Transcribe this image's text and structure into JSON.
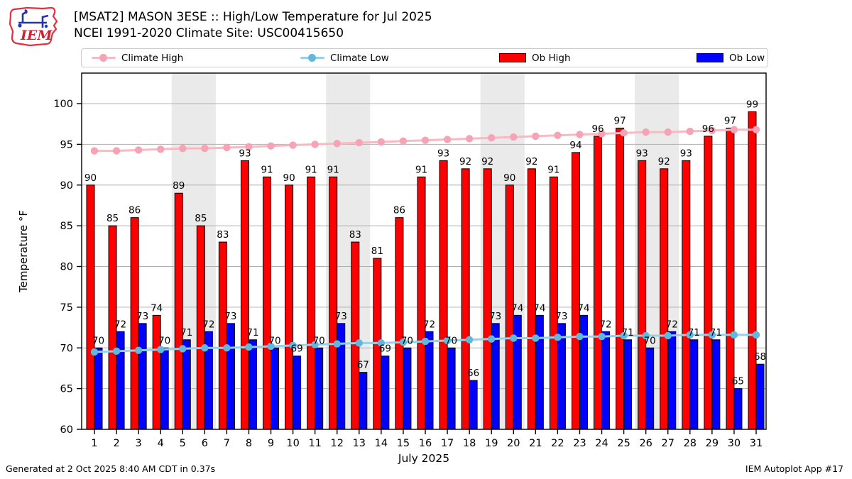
{
  "header": {
    "title_line1": "[MSAT2] MASON 3ESE :: High/Low Temperature for Jul 2025",
    "title_line2": "NCEI 1991-2020 Climate Site: USC00415650",
    "logo_text": "IEM"
  },
  "legend": {
    "items": [
      {
        "label": "Climate High",
        "type": "line",
        "color": "#f9b8c4",
        "marker_color": "#f5a3b5"
      },
      {
        "label": "Climate Low",
        "type": "line",
        "color": "#93d2ea",
        "marker_color": "#62b8dc"
      },
      {
        "label": "Ob High",
        "type": "patch",
        "color": "#ff0000"
      },
      {
        "label": "Ob Low",
        "type": "patch",
        "color": "#0000ff"
      }
    ]
  },
  "chart_data": {
    "type": "bar",
    "title": "[MSAT2] MASON 3ESE :: High/Low Temperature for Jul 2025",
    "subtitle": "NCEI 1991-2020 Climate Site: USC00415650",
    "xlabel": "July 2025",
    "ylabel": "Temperature °F",
    "ylim": [
      60,
      103.75
    ],
    "yticks": [
      60,
      65,
      70,
      75,
      80,
      85,
      90,
      95,
      100
    ],
    "grid": true,
    "legend_position": "top",
    "x": [
      1,
      2,
      3,
      4,
      5,
      6,
      7,
      8,
      9,
      10,
      11,
      12,
      13,
      14,
      15,
      16,
      17,
      18,
      19,
      20,
      21,
      22,
      23,
      24,
      25,
      26,
      27,
      28,
      29,
      30,
      31
    ],
    "weekend_bands": [
      [
        4.5,
        6.5
      ],
      [
        11.5,
        13.5
      ],
      [
        18.5,
        20.5
      ],
      [
        25.5,
        27.5
      ]
    ],
    "series": [
      {
        "name": "Ob High",
        "type": "bar",
        "color": "#ff0000",
        "values": [
          90,
          85,
          86,
          74,
          89,
          85,
          83,
          93,
          91,
          90,
          91,
          91,
          83,
          81,
          86,
          91,
          93,
          92,
          92,
          90,
          92,
          91,
          94,
          96,
          97,
          93,
          92,
          93,
          96,
          97,
          99
        ]
      },
      {
        "name": "Ob Low",
        "type": "bar",
        "color": "#0000ff",
        "values": [
          70,
          72,
          73,
          70,
          71,
          72,
          73,
          71,
          70,
          69,
          70,
          73,
          67,
          69,
          70,
          72,
          70,
          66,
          73,
          74,
          74,
          73,
          74,
          72,
          71,
          70,
          72,
          71,
          71,
          65,
          68
        ]
      },
      {
        "name": "Climate High",
        "type": "line",
        "color": "#f9b8c4",
        "marker_color": "#f5a3b5",
        "values": [
          94.2,
          94.2,
          94.3,
          94.4,
          94.5,
          94.5,
          94.6,
          94.7,
          94.8,
          94.9,
          95.0,
          95.1,
          95.2,
          95.3,
          95.4,
          95.5,
          95.6,
          95.7,
          95.8,
          95.9,
          96.0,
          96.1,
          96.2,
          96.3,
          96.4,
          96.5,
          96.5,
          96.6,
          96.7,
          96.8,
          96.8
        ]
      },
      {
        "name": "Climate Low",
        "type": "line",
        "color": "#93d2ea",
        "marker_color": "#62b8dc",
        "values": [
          69.5,
          69.6,
          69.7,
          69.8,
          69.9,
          70.0,
          70.0,
          70.1,
          70.2,
          70.3,
          70.4,
          70.5,
          70.6,
          70.6,
          70.7,
          70.8,
          70.9,
          71.0,
          71.1,
          71.2,
          71.2,
          71.3,
          71.4,
          71.4,
          71.5,
          71.5,
          71.5,
          71.6,
          71.6,
          71.6,
          71.6
        ]
      }
    ]
  },
  "footer": {
    "left": "Generated at 2 Oct 2025 8:40 AM CDT in 0.37s",
    "right": "IEM Autoplot App #17"
  },
  "colors": {
    "weekend_band": "#eaeaea",
    "gridline": "#b0b0b0",
    "axis": "#000000"
  }
}
